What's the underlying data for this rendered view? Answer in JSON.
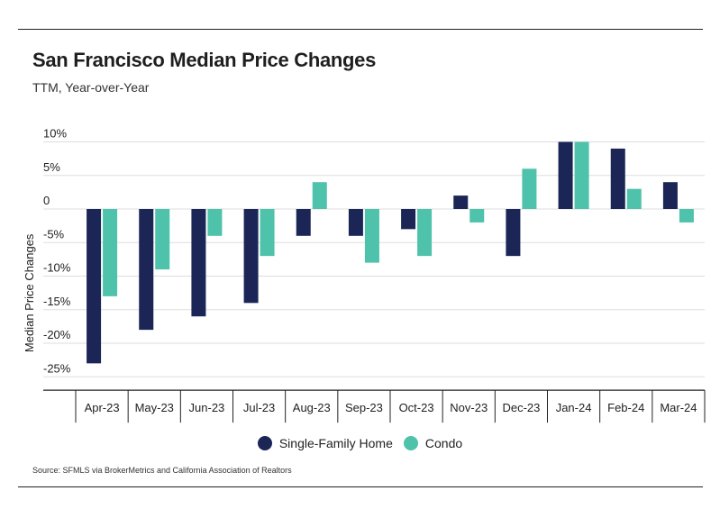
{
  "header": {
    "title": "San Francisco Median Price Changes",
    "subtitle": "TTM, Year-over-Year"
  },
  "footer": {
    "source": "Source:  SFMLS via BrokerMetrics and California Association of Realtors"
  },
  "colors": {
    "single_family": "#1b2657",
    "condo": "#4ec2aa",
    "grid": "#dddddd",
    "axis": "#222222"
  },
  "chart_data": {
    "type": "bar",
    "title": "San Francisco Median Price Changes",
    "subtitle": "TTM, Year-over-Year",
    "xlabel": "",
    "ylabel": "Median Price Changes",
    "categories": [
      "Apr-23",
      "May-23",
      "Jun-23",
      "Jul-23",
      "Aug-23",
      "Sep-23",
      "Oct-23",
      "Nov-23",
      "Dec-23",
      "Jan-24",
      "Feb-24",
      "Mar-24"
    ],
    "series": [
      {
        "name": "Single-Family Home",
        "values": [
          -23,
          -18,
          -16,
          -14,
          -4,
          -4,
          -3,
          2,
          -7,
          10,
          9,
          4
        ]
      },
      {
        "name": "Condo",
        "values": [
          -13,
          -9,
          -4,
          -7,
          4,
          -8,
          -7,
          -2,
          6,
          10,
          3,
          -2
        ]
      }
    ],
    "ylim": [
      -25,
      10
    ],
    "y_ticks": [
      {
        "value": 10,
        "label": "10%"
      },
      {
        "value": 5,
        "label": "5%"
      },
      {
        "value": 0,
        "label": "0"
      },
      {
        "value": -5,
        "label": "-5%"
      },
      {
        "value": -10,
        "label": "-10%"
      },
      {
        "value": -15,
        "label": "-15%"
      },
      {
        "value": -20,
        "label": "-20%"
      },
      {
        "value": -25,
        "label": "-25%"
      }
    ],
    "grid": true,
    "legend_position": "bottom"
  }
}
